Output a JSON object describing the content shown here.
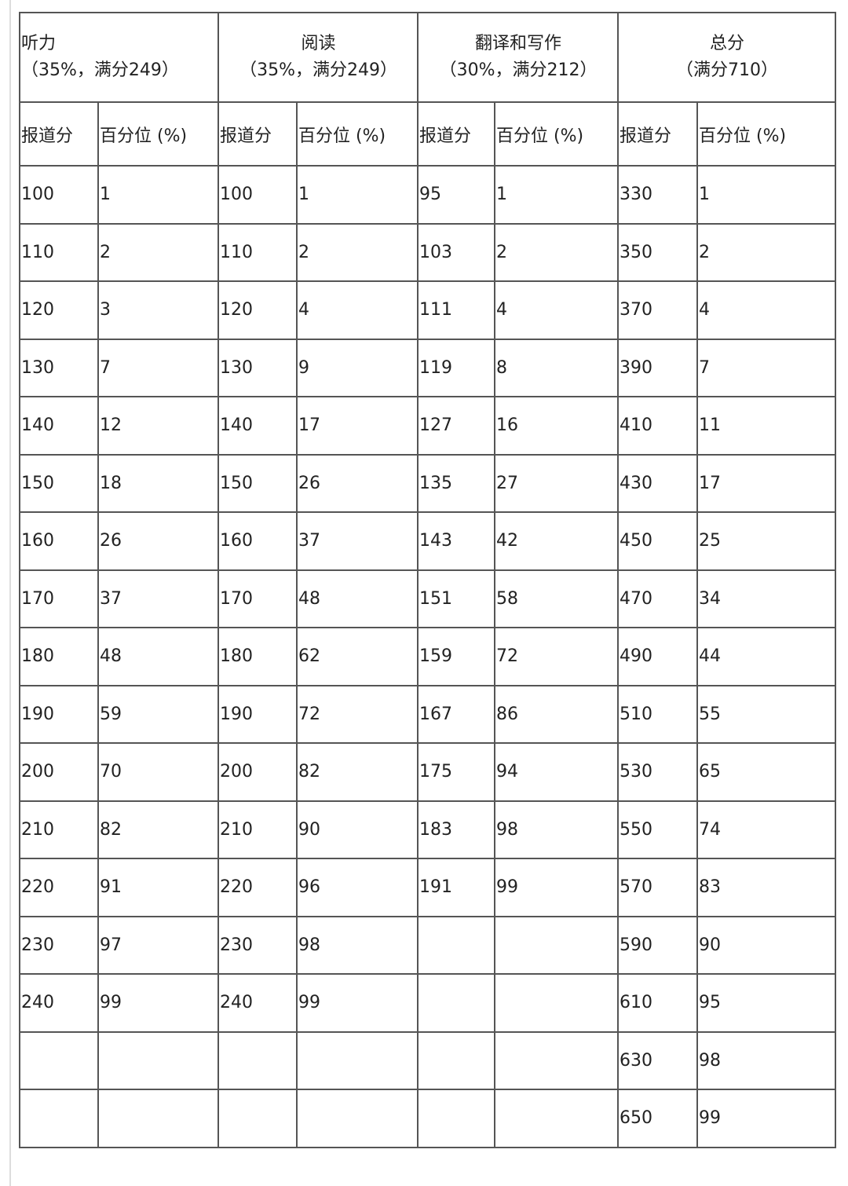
{
  "sections": [
    {
      "title": "听力",
      "subtitle": "（35%，满分249）"
    },
    {
      "title": "阅读",
      "subtitle": "（35%，满分249）"
    },
    {
      "title": "翻译和写作",
      "subtitle": "（30%，满分212）"
    },
    {
      "title": "总分",
      "subtitle": "（满分710）"
    }
  ],
  "column_headers": [
    "报道分",
    "百分位 (%)"
  ],
  "rows": [
    [
      "100",
      "1",
      "100",
      "1",
      "95",
      "1",
      "330",
      "1"
    ],
    [
      "110",
      "2",
      "110",
      "2",
      "103",
      "2",
      "350",
      "2"
    ],
    [
      "120",
      "3",
      "120",
      "4",
      "111",
      "4",
      "370",
      "4"
    ],
    [
      "130",
      "7",
      "130",
      "9",
      "119",
      "8",
      "390",
      "7"
    ],
    [
      "140",
      "12",
      "140",
      "17",
      "127",
      "16",
      "410",
      "11"
    ],
    [
      "150",
      "18",
      "150",
      "26",
      "135",
      "27",
      "430",
      "17"
    ],
    [
      "160",
      "26",
      "160",
      "37",
      "143",
      "42",
      "450",
      "25"
    ],
    [
      "170",
      "37",
      "170",
      "48",
      "151",
      "58",
      "470",
      "34"
    ],
    [
      "180",
      "48",
      "180",
      "62",
      "159",
      "72",
      "490",
      "44"
    ],
    [
      "190",
      "59",
      "190",
      "72",
      "167",
      "86",
      "510",
      "55"
    ],
    [
      "200",
      "70",
      "200",
      "82",
      "175",
      "94",
      "530",
      "65"
    ],
    [
      "210",
      "82",
      "210",
      "90",
      "183",
      "98",
      "550",
      "74"
    ],
    [
      "220",
      "91",
      "220",
      "96",
      "191",
      "99",
      "570",
      "83"
    ],
    [
      "230",
      "97",
      "230",
      "98",
      "",
      "",
      "590",
      "90"
    ],
    [
      "240",
      "99",
      "240",
      "99",
      "",
      "",
      "610",
      "95"
    ],
    [
      "",
      "",
      "",
      "",
      "",
      "",
      "630",
      "98"
    ],
    [
      "",
      "",
      "",
      "",
      "",
      "",
      "650",
      "99"
    ]
  ]
}
